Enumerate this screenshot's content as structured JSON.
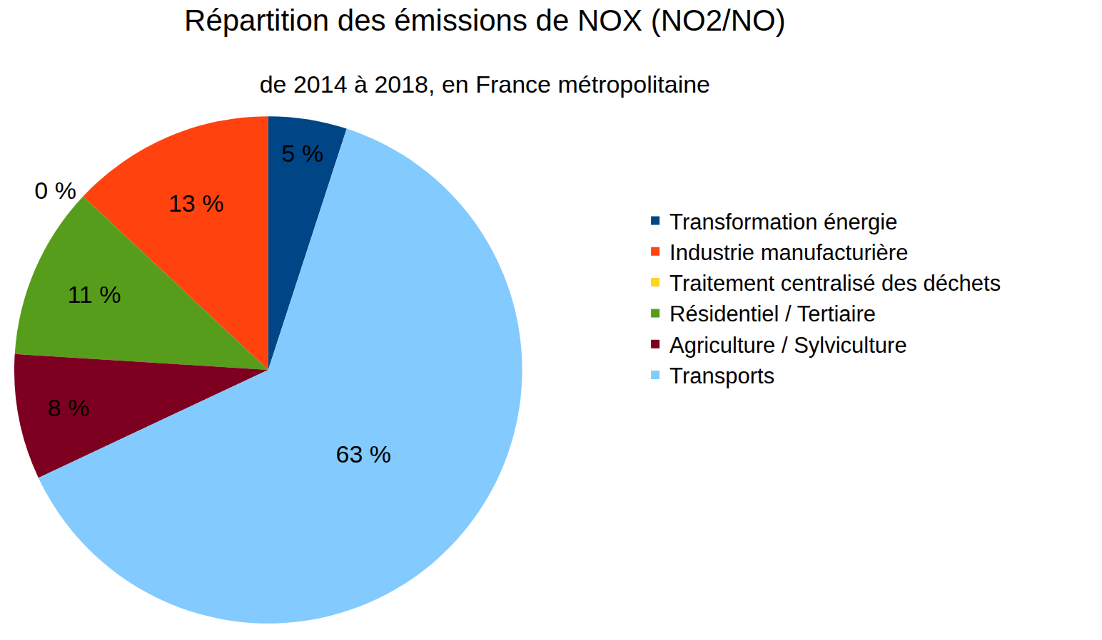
{
  "chart_data": {
    "type": "pie",
    "title": "Répartition des émissions de NOX (NO2/NO)",
    "subtitle": "de 2014 à 2018, en France métropolitaine",
    "categories": [
      "Transformation énergie",
      "Industrie manufacturière",
      "Traitement centralisé des déchets",
      "Résidentiel / Tertiaire",
      "Agriculture / Sylviculture",
      "Transports"
    ],
    "values": [
      5,
      13,
      0,
      11,
      8,
      63
    ],
    "value_labels": [
      "5 %",
      "13 %",
      "0 %",
      "11 %",
      "8 %",
      "63 %"
    ],
    "colors": [
      "#004586",
      "#ff420e",
      "#ffd320",
      "#579d1c",
      "#7e0021",
      "#83caff"
    ],
    "data_labels": true,
    "legend": "right"
  }
}
